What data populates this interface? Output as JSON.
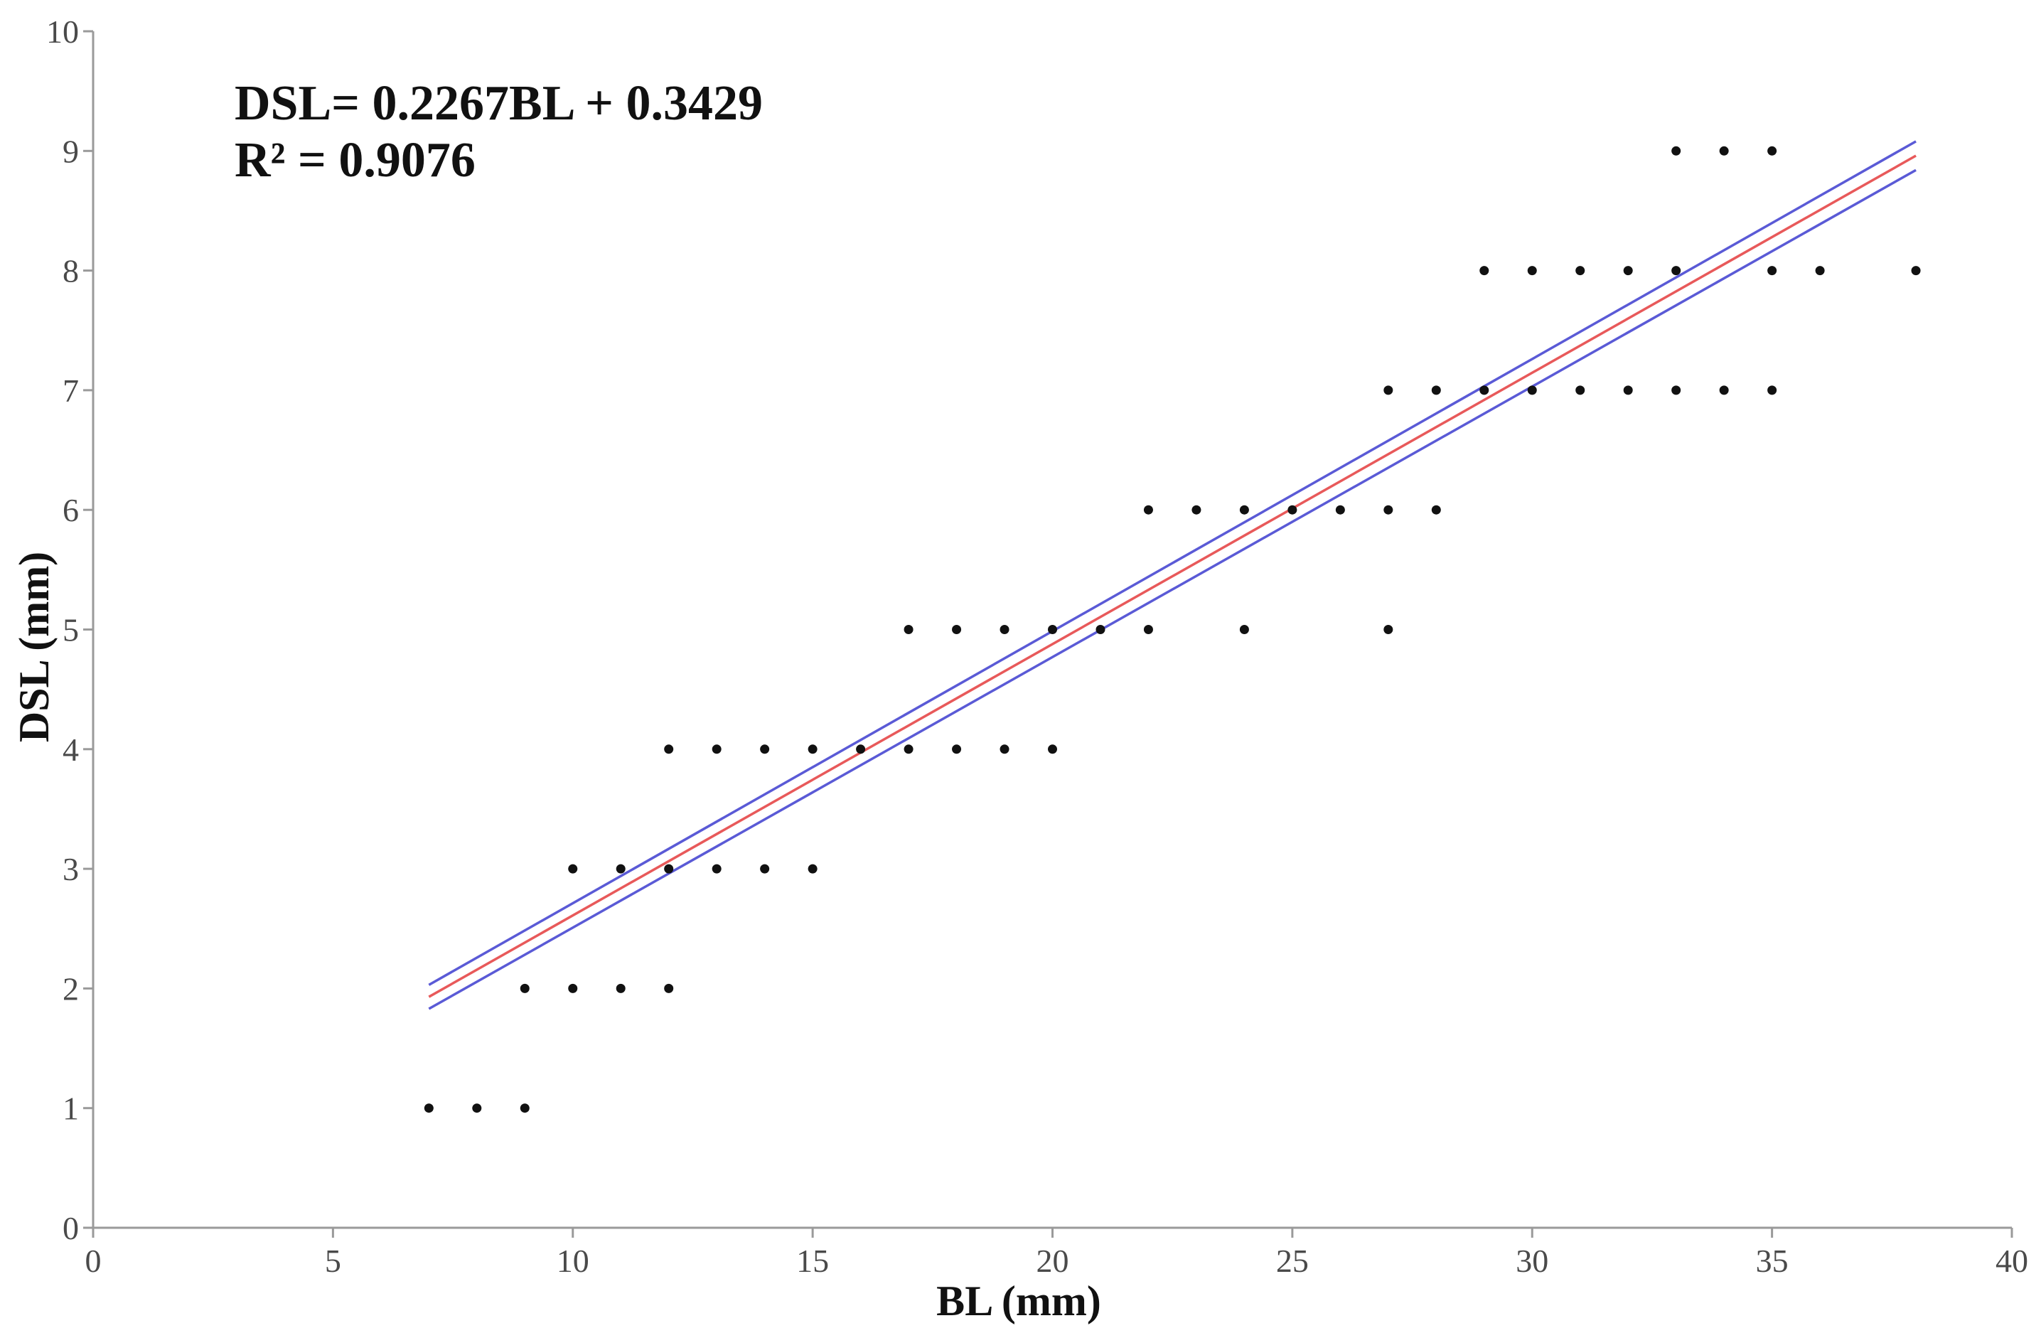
{
  "chart_data": {
    "type": "scatter",
    "title": "",
    "xlabel": "BL (mm)",
    "ylabel": "DSL (mm)",
    "xlim": [
      0,
      40
    ],
    "ylim": [
      0,
      10
    ],
    "xticks": [
      0,
      5,
      10,
      15,
      20,
      25,
      30,
      35,
      40
    ],
    "yticks": [
      0,
      1,
      2,
      3,
      4,
      5,
      6,
      7,
      8,
      9,
      10
    ],
    "grid": false,
    "annotations": [
      "DSL= 0.2267BL + 0.3429",
      "R² = 0.9076"
    ],
    "points": [
      {
        "x": 7,
        "y": 1
      },
      {
        "x": 8,
        "y": 1
      },
      {
        "x": 9,
        "y": 1
      },
      {
        "x": 9,
        "y": 2
      },
      {
        "x": 10,
        "y": 2
      },
      {
        "x": 11,
        "y": 2
      },
      {
        "x": 12,
        "y": 2
      },
      {
        "x": 10,
        "y": 3
      },
      {
        "x": 11,
        "y": 3
      },
      {
        "x": 12,
        "y": 3
      },
      {
        "x": 13,
        "y": 3
      },
      {
        "x": 14,
        "y": 3
      },
      {
        "x": 15,
        "y": 3
      },
      {
        "x": 12,
        "y": 4
      },
      {
        "x": 13,
        "y": 4
      },
      {
        "x": 14,
        "y": 4
      },
      {
        "x": 15,
        "y": 4
      },
      {
        "x": 16,
        "y": 4
      },
      {
        "x": 17,
        "y": 4
      },
      {
        "x": 18,
        "y": 4
      },
      {
        "x": 19,
        "y": 4
      },
      {
        "x": 20,
        "y": 4
      },
      {
        "x": 17,
        "y": 5
      },
      {
        "x": 18,
        "y": 5
      },
      {
        "x": 19,
        "y": 5
      },
      {
        "x": 20,
        "y": 5
      },
      {
        "x": 21,
        "y": 5
      },
      {
        "x": 22,
        "y": 5
      },
      {
        "x": 24,
        "y": 5
      },
      {
        "x": 27,
        "y": 5
      },
      {
        "x": 22,
        "y": 6
      },
      {
        "x": 23,
        "y": 6
      },
      {
        "x": 24,
        "y": 6
      },
      {
        "x": 25,
        "y": 6
      },
      {
        "x": 26,
        "y": 6
      },
      {
        "x": 27,
        "y": 6
      },
      {
        "x": 28,
        "y": 6
      },
      {
        "x": 27,
        "y": 7
      },
      {
        "x": 28,
        "y": 7
      },
      {
        "x": 29,
        "y": 7
      },
      {
        "x": 30,
        "y": 7
      },
      {
        "x": 31,
        "y": 7
      },
      {
        "x": 32,
        "y": 7
      },
      {
        "x": 33,
        "y": 7
      },
      {
        "x": 34,
        "y": 7
      },
      {
        "x": 35,
        "y": 7
      },
      {
        "x": 29,
        "y": 8
      },
      {
        "x": 30,
        "y": 8
      },
      {
        "x": 31,
        "y": 8
      },
      {
        "x": 32,
        "y": 8
      },
      {
        "x": 33,
        "y": 8
      },
      {
        "x": 35,
        "y": 8
      },
      {
        "x": 36,
        "y": 8
      },
      {
        "x": 38,
        "y": 8
      },
      {
        "x": 33,
        "y": 9
      },
      {
        "x": 34,
        "y": 9
      },
      {
        "x": 35,
        "y": 9
      }
    ],
    "fit_lines": [
      {
        "role": "regression",
        "color": "#e8595a",
        "x": [
          7,
          38
        ],
        "y": [
          1.93,
          8.96
        ]
      },
      {
        "role": "upper-band",
        "color": "#5a5ad6",
        "x": [
          7,
          38
        ],
        "y": [
          2.03,
          9.08
        ]
      },
      {
        "role": "lower-band",
        "color": "#5a5ad6",
        "x": [
          7,
          38
        ],
        "y": [
          1.83,
          8.84
        ]
      }
    ],
    "point_color": "#111111"
  }
}
